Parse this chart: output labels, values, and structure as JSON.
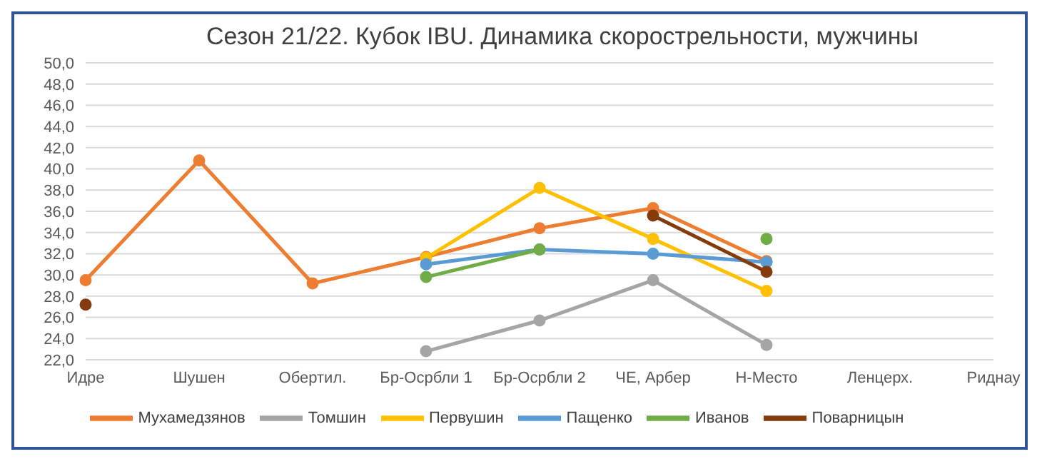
{
  "chart_data": {
    "type": "line",
    "title": "Сезон 21/22. Кубок IBU. Динамика скорострельности, мужчины",
    "categories": [
      "Идре",
      "Шушен",
      "Обертил.",
      "Бр-Осрбли 1",
      "Бр-Осрбли 2",
      "ЧЕ, Арбер",
      "Н-Место",
      "Ленцерх.",
      "Риднау"
    ],
    "series": [
      {
        "name": "Мухамедзянов",
        "color": "#ed7d31",
        "values": [
          29.5,
          40.8,
          29.2,
          31.7,
          34.4,
          36.3,
          31.3,
          null,
          null
        ]
      },
      {
        "name": "Томшин",
        "color": "#a5a5a5",
        "values": [
          null,
          null,
          null,
          22.8,
          25.7,
          29.5,
          23.4,
          null,
          null
        ]
      },
      {
        "name": "Первушин",
        "color": "#ffc000",
        "values": [
          null,
          null,
          null,
          31.6,
          38.2,
          33.4,
          28.5,
          null,
          null
        ]
      },
      {
        "name": "Пащенко",
        "color": "#5b9bd5",
        "values": [
          null,
          null,
          null,
          31.0,
          32.4,
          32.0,
          31.2,
          null,
          null
        ]
      },
      {
        "name": "Иванов",
        "color": "#70ad47",
        "values": [
          null,
          null,
          null,
          29.8,
          32.4,
          null,
          33.4,
          null,
          null
        ]
      },
      {
        "name": "Поварницын",
        "color": "#843c0c",
        "values": [
          27.2,
          null,
          null,
          null,
          null,
          35.6,
          30.3,
          null,
          null
        ]
      }
    ],
    "ylim": [
      22,
      50
    ],
    "yticks": [
      {
        "value": 22,
        "label": "22,0"
      },
      {
        "value": 24,
        "label": "24,0"
      },
      {
        "value": 26,
        "label": "26,0"
      },
      {
        "value": 28,
        "label": "28,0"
      },
      {
        "value": 30,
        "label": "30,0"
      },
      {
        "value": 32,
        "label": "32,0"
      },
      {
        "value": 34,
        "label": "34,0"
      },
      {
        "value": 36,
        "label": "36,0"
      },
      {
        "value": 38,
        "label": "38,0"
      },
      {
        "value": 40,
        "label": "40,0"
      },
      {
        "value": 42,
        "label": "42,0"
      },
      {
        "value": 44,
        "label": "44,0"
      },
      {
        "value": 46,
        "label": "46,0"
      },
      {
        "value": 48,
        "label": "48,0"
      },
      {
        "value": 50,
        "label": "50,0"
      }
    ],
    "grid": "y",
    "legend": "bottom",
    "marker": "circle",
    "line_style": "solid"
  }
}
